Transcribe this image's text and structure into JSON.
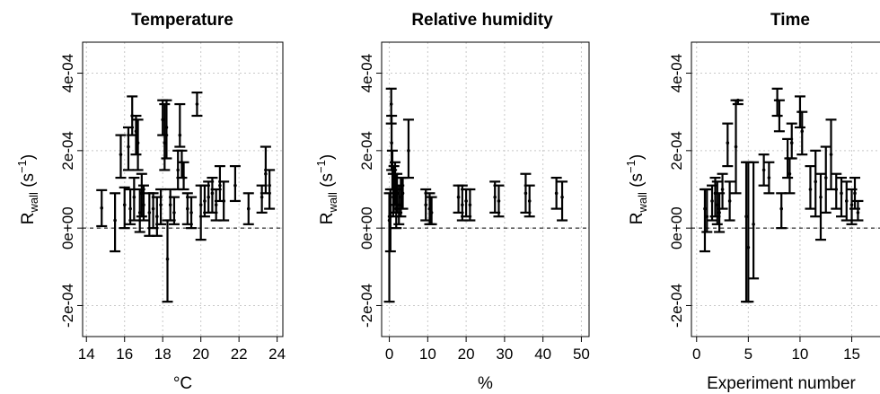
{
  "chart_data": [
    {
      "type": "scatter",
      "title": "Temperature",
      "xlabel": "°C",
      "ylabel": "R_wall (s^-1)",
      "xlim": [
        13.8,
        24.3
      ],
      "ylim": [
        -0.00028,
        0.00048
      ],
      "x_ticks": [
        14,
        16,
        18,
        20,
        22,
        24
      ],
      "y_ticks": [
        -0.0002,
        0,
        0.0002,
        0.0004
      ],
      "y_tick_labels": [
        "-2e-04",
        "0e+00",
        "2e-04",
        "4e-04"
      ],
      "grid": true,
      "reference_line_y": 0,
      "points": [
        {
          "x": 14.8,
          "y": 5.2e-05,
          "low": 5e-06,
          "high": 9.8e-05
        },
        {
          "x": 15.5,
          "y": 2e-05,
          "low": -6e-05,
          "high": 9e-05
        },
        {
          "x": 15.8,
          "y": 0.00019,
          "low": 0.00013,
          "high": 0.00024
        },
        {
          "x": 16.0,
          "y": 6e-05,
          "low": 0.0,
          "high": 0.000105
        },
        {
          "x": 16.2,
          "y": 0.00021,
          "low": 0.00015,
          "high": 0.00026
        },
        {
          "x": 16.3,
          "y": 5e-05,
          "low": 1e-05,
          "high": 0.0001
        },
        {
          "x": 16.4,
          "y": 0.00029,
          "low": 0.00024,
          "high": 0.00034
        },
        {
          "x": 16.5,
          "y": 8e-05,
          "low": 2e-05,
          "high": 0.00013
        },
        {
          "x": 16.6,
          "y": 0.00025,
          "low": 0.00019,
          "high": 0.00029
        },
        {
          "x": 16.7,
          "y": 0.00022,
          "low": 0.00015,
          "high": 0.00028
        },
        {
          "x": 16.8,
          "y": 4e-05,
          "low": -1e-05,
          "high": 0.0001
        },
        {
          "x": 16.9,
          "y": 9e-05,
          "low": 3e-05,
          "high": 0.00014
        },
        {
          "x": 17.0,
          "y": 6e-05,
          "low": 2e-05,
          "high": 0.00011
        },
        {
          "x": 17.3,
          "y": 4e-05,
          "low": -2e-05,
          "high": 9e-05
        },
        {
          "x": 17.5,
          "y": 5e-05,
          "low": 0.0,
          "high": 9e-05
        },
        {
          "x": 17.7,
          "y": 3e-05,
          "low": -2e-05,
          "high": 8e-05
        },
        {
          "x": 17.9,
          "y": 6e-05,
          "low": 1e-05,
          "high": 0.0001
        },
        {
          "x": 18.0,
          "y": 0.00028,
          "low": 0.00024,
          "high": 0.00033
        },
        {
          "x": 18.1,
          "y": 0.00022,
          "low": 0.00015,
          "high": 0.00032
        },
        {
          "x": 18.2,
          "y": 0.00026,
          "low": 0.00018,
          "high": 0.00033
        },
        {
          "x": 18.25,
          "y": -8e-05,
          "low": -0.00019,
          "high": 2e-05
        },
        {
          "x": 18.4,
          "y": 6e-05,
          "low": 2e-05,
          "high": 0.0001
        },
        {
          "x": 18.6,
          "y": 4e-05,
          "low": 1e-05,
          "high": 8e-05
        },
        {
          "x": 18.8,
          "y": 0.00015,
          "low": 0.0001,
          "high": 0.0002
        },
        {
          "x": 18.9,
          "y": 0.00024,
          "low": 0.00021,
          "high": 0.00032
        },
        {
          "x": 19.0,
          "y": 0.00017,
          "low": 0.00013,
          "high": 0.0002
        },
        {
          "x": 19.1,
          "y": 0.00013,
          "low": 0.0001,
          "high": 0.00017
        },
        {
          "x": 19.3,
          "y": 5e-05,
          "low": 1e-05,
          "high": 9e-05
        },
        {
          "x": 19.5,
          "y": 4e-05,
          "low": 0.0,
          "high": 8e-05
        },
        {
          "x": 19.8,
          "y": 0.00032,
          "low": 0.00029,
          "high": 0.00035
        },
        {
          "x": 20.0,
          "y": 6e-05,
          "low": -3e-05,
          "high": 0.00011
        },
        {
          "x": 20.2,
          "y": 7e-05,
          "low": 3e-05,
          "high": 0.00011
        },
        {
          "x": 20.4,
          "y": 8e-05,
          "low": 4e-05,
          "high": 0.00012
        },
        {
          "x": 20.6,
          "y": 9e-05,
          "low": 4e-05,
          "high": 0.00013
        },
        {
          "x": 20.8,
          "y": 6e-05,
          "low": 2e-05,
          "high": 0.0001
        },
        {
          "x": 21.0,
          "y": 0.00011,
          "low": 7e-05,
          "high": 0.00016
        },
        {
          "x": 21.2,
          "y": 7e-05,
          "low": 2e-05,
          "high": 0.00012
        },
        {
          "x": 21.8,
          "y": 0.00011,
          "low": 7e-05,
          "high": 0.00016
        },
        {
          "x": 22.5,
          "y": 5e-05,
          "low": 1e-05,
          "high": 9e-05
        },
        {
          "x": 23.2,
          "y": 8e-05,
          "low": 4e-05,
          "high": 0.00011
        },
        {
          "x": 23.4,
          "y": 0.00014,
          "low": 9e-05,
          "high": 0.00021
        },
        {
          "x": 23.6,
          "y": 0.00011,
          "low": 5e-05,
          "high": 0.00015
        }
      ]
    },
    {
      "type": "scatter",
      "title": "Relative humidity",
      "xlabel": "%",
      "ylabel": "R_wall (s^-1)",
      "xlim": [
        -2,
        52
      ],
      "ylim": [
        -0.00028,
        0.00048
      ],
      "x_ticks": [
        0,
        10,
        20,
        30,
        40,
        50
      ],
      "y_ticks": [
        -0.0002,
        0,
        0.0002,
        0.0004
      ],
      "y_tick_labels": [
        "-2e-04",
        "0e+00",
        "2e-04",
        "4e-04"
      ],
      "grid": true,
      "reference_line_y": 0,
      "points": [
        {
          "x": 0.0,
          "y": 2e-05,
          "low": -0.00019,
          "high": 9e-05
        },
        {
          "x": 0.3,
          "y": 3e-05,
          "low": -6e-05,
          "high": 0.0001
        },
        {
          "x": 0.5,
          "y": 0.00032,
          "low": 0.00027,
          "high": 0.00036
        },
        {
          "x": 0.6,
          "y": 0.00022,
          "low": 0.00015,
          "high": 0.00029
        },
        {
          "x": 0.8,
          "y": 0.00015,
          "low": 0.0001,
          "high": 0.0002
        },
        {
          "x": 1.0,
          "y": 8e-05,
          "low": 3e-05,
          "high": 0.00014
        },
        {
          "x": 1.2,
          "y": 0.0001,
          "low": 4e-05,
          "high": 0.00016
        },
        {
          "x": 1.5,
          "y": 0.00012,
          "low": 6e-05,
          "high": 0.00017
        },
        {
          "x": 1.8,
          "y": 5e-05,
          "low": 0.0,
          "high": 0.0001
        },
        {
          "x": 2.0,
          "y": 9e-05,
          "low": 4e-05,
          "high": 0.00014
        },
        {
          "x": 2.5,
          "y": 6e-05,
          "low": 1e-05,
          "high": 0.00011
        },
        {
          "x": 3.0,
          "y": 8e-05,
          "low": 3e-05,
          "high": 0.00013
        },
        {
          "x": 3.5,
          "y": 9e-05,
          "low": 5e-05,
          "high": 0.00013
        },
        {
          "x": 5.0,
          "y": 0.0002,
          "low": 0.00013,
          "high": 0.00028
        },
        {
          "x": 9.5,
          "y": 6e-05,
          "low": 2e-05,
          "high": 0.0001
        },
        {
          "x": 10.5,
          "y": 5e-05,
          "low": 1e-05,
          "high": 9e-05
        },
        {
          "x": 11.0,
          "y": 4e-05,
          "low": 1e-05,
          "high": 8e-05
        },
        {
          "x": 18.0,
          "y": 8e-05,
          "low": 4e-05,
          "high": 0.00011
        },
        {
          "x": 19.0,
          "y": 6e-05,
          "low": 2e-05,
          "high": 0.00011
        },
        {
          "x": 20.0,
          "y": 7e-05,
          "low": 3e-05,
          "high": 0.0001
        },
        {
          "x": 21.0,
          "y": 6e-05,
          "low": 2e-05,
          "high": 0.0001
        },
        {
          "x": 27.5,
          "y": 8e-05,
          "low": 4e-05,
          "high": 0.00012
        },
        {
          "x": 28.5,
          "y": 7e-05,
          "low": 3e-05,
          "high": 0.00011
        },
        {
          "x": 35.5,
          "y": 9e-05,
          "low": 4e-05,
          "high": 0.00014
        },
        {
          "x": 36.5,
          "y": 7e-05,
          "low": 3e-05,
          "high": 0.00011
        },
        {
          "x": 43.5,
          "y": 9e-05,
          "low": 5e-05,
          "high": 0.00013
        },
        {
          "x": 45.0,
          "y": 8e-05,
          "low": 2e-05,
          "high": 0.00012
        }
      ]
    },
    {
      "type": "scatter",
      "title": "Time",
      "xlabel": "Experiment number",
      "ylabel": "R_wall (s^-1)",
      "xlim": [
        -0.5,
        18.6
      ],
      "ylim": [
        -0.00028,
        0.00048
      ],
      "x_ticks": [
        0,
        5,
        10,
        15
      ],
      "y_ticks": [
        -0.0002,
        0,
        0.0002,
        0.0004
      ],
      "y_tick_labels": [
        "-2e-04",
        "0e+00",
        "2e-04",
        "4e-04"
      ],
      "grid": true,
      "reference_line_y": 0,
      "points": [
        {
          "x": 0.8,
          "y": 5e-05,
          "low": -6e-05,
          "high": 0.0001
        },
        {
          "x": 1.0,
          "y": 3e-05,
          "low": -1e-05,
          "high": 0.0001
        },
        {
          "x": 1.5,
          "y": 7e-05,
          "low": 2e-05,
          "high": 0.00011
        },
        {
          "x": 1.8,
          "y": 9e-05,
          "low": 3e-05,
          "high": 0.00013
        },
        {
          "x": 2.0,
          "y": 6e-05,
          "low": 1e-05,
          "high": 0.00012
        },
        {
          "x": 2.2,
          "y": 4e-05,
          "low": -1e-05,
          "high": 9e-05
        },
        {
          "x": 2.5,
          "y": 0.0001,
          "low": 5e-05,
          "high": 0.00014
        },
        {
          "x": 3.0,
          "y": 0.00022,
          "low": 0.00016,
          "high": 0.00027
        },
        {
          "x": 3.2,
          "y": 7e-05,
          "low": 2e-05,
          "high": 0.00012
        },
        {
          "x": 3.8,
          "y": 0.00021,
          "low": 9e-05,
          "high": 0.00033
        },
        {
          "x": 4.0,
          "y": 0.00033,
          "low": 0.00032,
          "high": 0.00033
        },
        {
          "x": 4.8,
          "y": 3e-05,
          "low": -0.00019,
          "high": 0.00017
        },
        {
          "x": 5.0,
          "y": -5e-05,
          "low": -0.00019,
          "high": 0.00017
        },
        {
          "x": 5.5,
          "y": 1e-05,
          "low": -0.00013,
          "high": 0.00017
        },
        {
          "x": 6.5,
          "y": 0.00015,
          "low": 0.00011,
          "high": 0.00019
        },
        {
          "x": 7.0,
          "y": 0.00013,
          "low": 9e-05,
          "high": 0.00017
        },
        {
          "x": 7.8,
          "y": 0.00033,
          "low": 0.00029,
          "high": 0.00036
        },
        {
          "x": 8.0,
          "y": 0.00029,
          "low": 0.00025,
          "high": 0.00033
        },
        {
          "x": 8.2,
          "y": 5e-05,
          "low": 0.0,
          "high": 9e-05
        },
        {
          "x": 8.8,
          "y": 0.00018,
          "low": 0.00013,
          "high": 0.00023
        },
        {
          "x": 9.0,
          "y": 0.00014,
          "low": 9e-05,
          "high": 0.00018
        },
        {
          "x": 9.2,
          "y": 0.00022,
          "low": 0.00018,
          "high": 0.00027
        },
        {
          "x": 10.0,
          "y": 0.0003,
          "low": 0.00026,
          "high": 0.00034
        },
        {
          "x": 10.2,
          "y": 0.00025,
          "low": 0.00019,
          "high": 0.0003
        },
        {
          "x": 11.0,
          "y": 0.0001,
          "low": 5e-05,
          "high": 0.00016
        },
        {
          "x": 11.5,
          "y": 0.00012,
          "low": 3e-05,
          "high": 0.0002
        },
        {
          "x": 12.0,
          "y": 8e-05,
          "low": -3e-05,
          "high": 0.00014
        },
        {
          "x": 12.5,
          "y": 0.00013,
          "low": 4e-05,
          "high": 0.00021
        },
        {
          "x": 13.0,
          "y": 0.00019,
          "low": 0.0001,
          "high": 0.00028
        },
        {
          "x": 13.5,
          "y": 0.0001,
          "low": 5e-05,
          "high": 0.00014
        },
        {
          "x": 14.0,
          "y": 9e-05,
          "low": 3e-05,
          "high": 0.00013
        },
        {
          "x": 14.5,
          "y": 7e-05,
          "low": 2e-05,
          "high": 0.00012
        },
        {
          "x": 15.0,
          "y": 6e-05,
          "low": 1e-05,
          "high": 0.0001
        },
        {
          "x": 15.3,
          "y": 9e-05,
          "low": 5e-05,
          "high": 0.00013
        },
        {
          "x": 15.6,
          "y": 4e-05,
          "low": 2e-05,
          "high": 7e-05
        }
      ]
    }
  ]
}
